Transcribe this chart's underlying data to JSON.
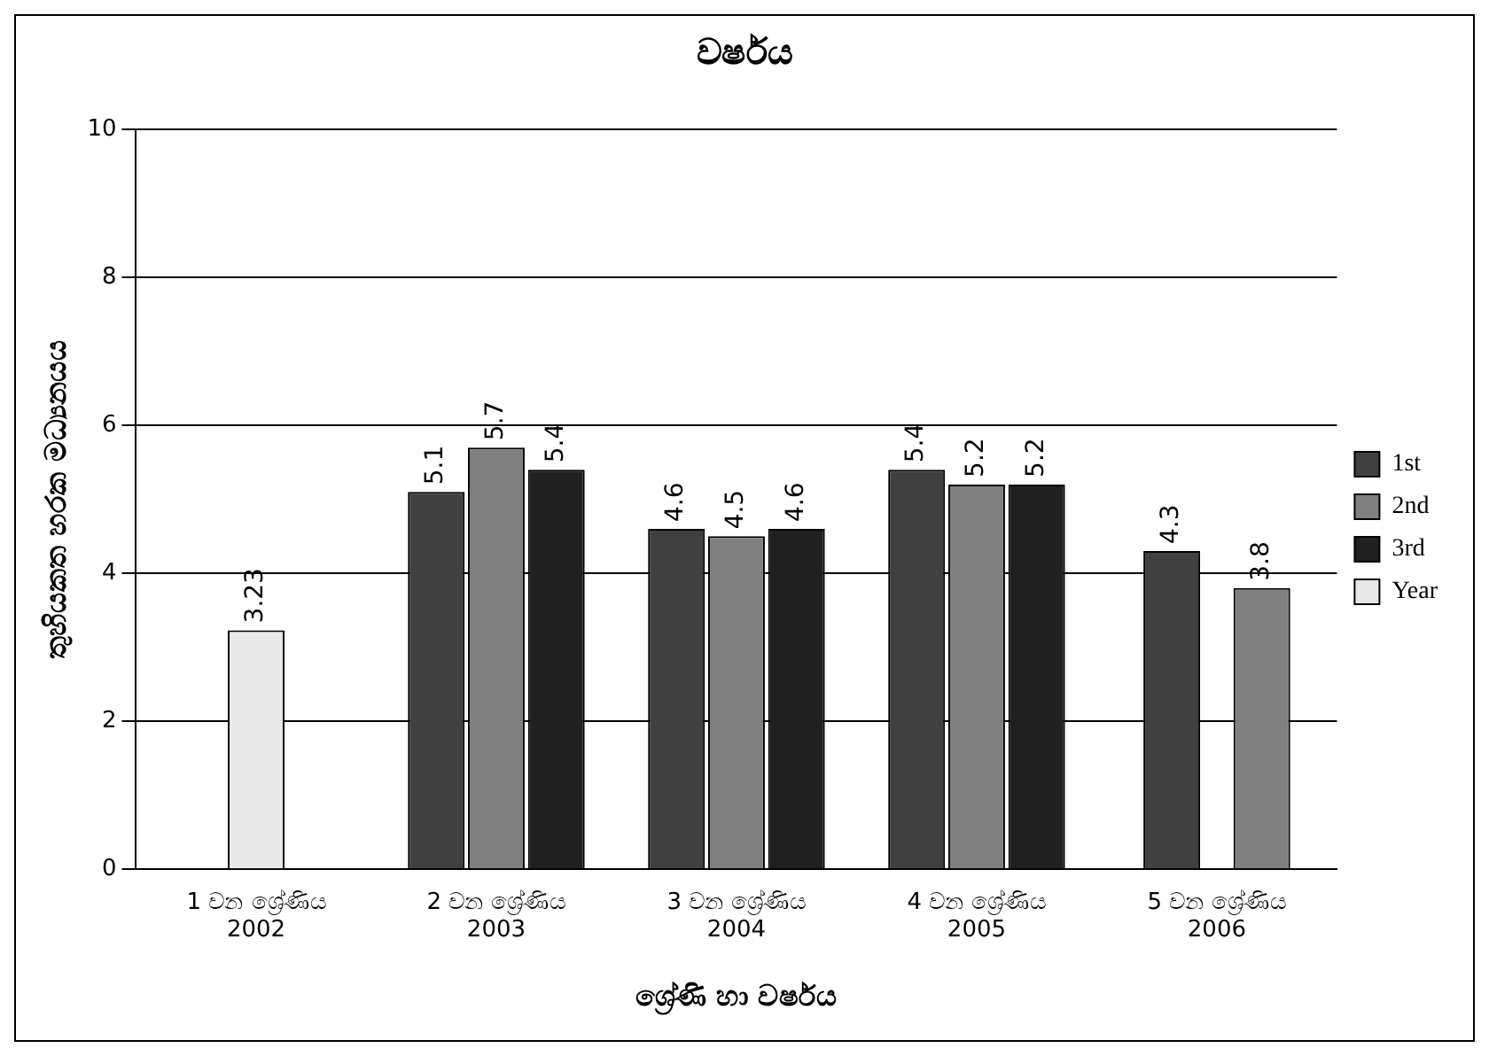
{
  "chart_data": {
    "type": "bar",
    "title": "වර්ෂය",
    "xlabel": "ශ්‍රේණි හා වර්ෂය",
    "ylabel": "තුහියකත හරක මධ්‍යනයය",
    "categories": [
      "1 වන ශ්‍රේණිය\n2002",
      "2 වන ශ්‍රේණිය\n2003",
      "3 වන ශ්‍රේණිය\n2004",
      "4 වන ශ්‍රේණිය\n2005",
      "5 වන ශ්‍රේණිය\n2006"
    ],
    "series": [
      {
        "name": "1st",
        "color": "#404040",
        "values": [
          null,
          5.1,
          4.6,
          5.4,
          4.3
        ]
      },
      {
        "name": "2nd",
        "color": "#808080",
        "values": [
          null,
          5.7,
          4.5,
          5.2,
          3.8
        ]
      },
      {
        "name": "3rd",
        "color": "#202020",
        "values": [
          null,
          5.4,
          4.6,
          5.2,
          null
        ]
      },
      {
        "name": "Year",
        "color": "#e8e8e8",
        "values": [
          3.23,
          null,
          null,
          null,
          null
        ]
      }
    ],
    "ylim": [
      0,
      10
    ],
    "yticks": [
      0,
      2,
      4,
      6,
      8,
      10
    ],
    "grid": "y",
    "legend": "right",
    "data_labels": true
  }
}
